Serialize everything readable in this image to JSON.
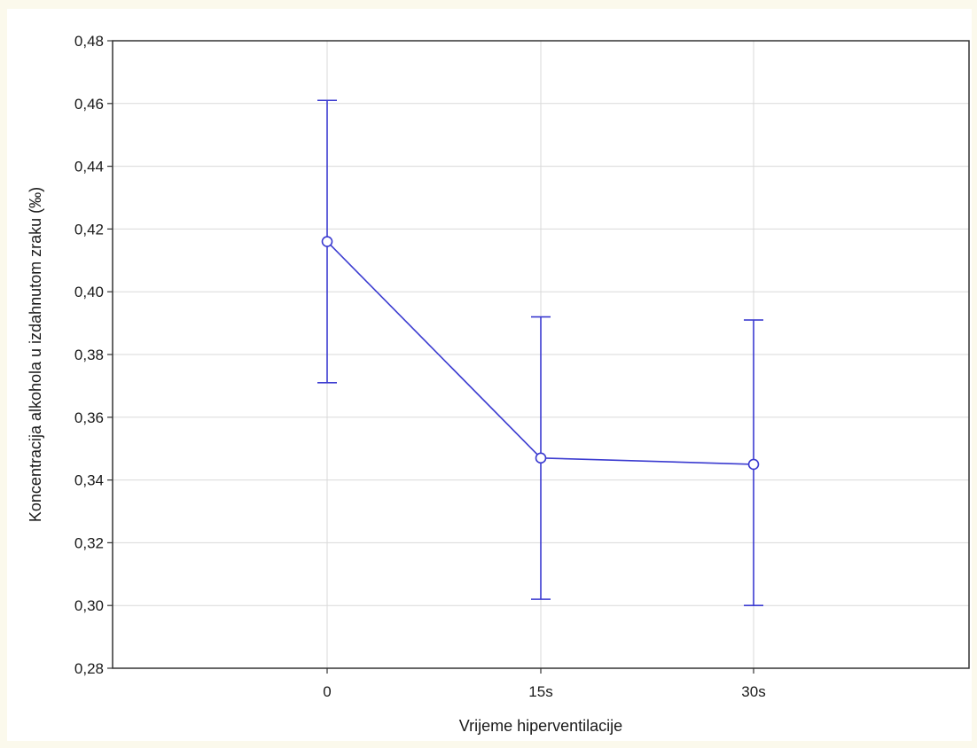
{
  "chart_data": {
    "type": "line",
    "title": "",
    "xlabel": "Vrijeme hiperventilacije",
    "ylabel": "Koncentracija alkohola u izdahnutom zraku (‰)",
    "categories": [
      "0",
      "15s",
      "30s"
    ],
    "series": [
      {
        "values": [
          0.416,
          0.347,
          0.345
        ],
        "error_low": [
          0.371,
          0.302,
          0.3
        ],
        "error_high": [
          0.461,
          0.392,
          0.391
        ],
        "color": "#3b3bd0"
      }
    ],
    "ylim": [
      0.28,
      0.48
    ],
    "yticks": [
      0.28,
      0.3,
      0.32,
      0.34,
      0.36,
      0.38,
      0.4,
      0.42,
      0.44,
      0.46,
      0.48
    ],
    "ytick_labels": [
      "0,28",
      "0,30",
      "0,32",
      "0,34",
      "0,36",
      "0,38",
      "0,40",
      "0,42",
      "0,44",
      "0,46",
      "0,48"
    ],
    "grid": true,
    "legend": "none"
  }
}
